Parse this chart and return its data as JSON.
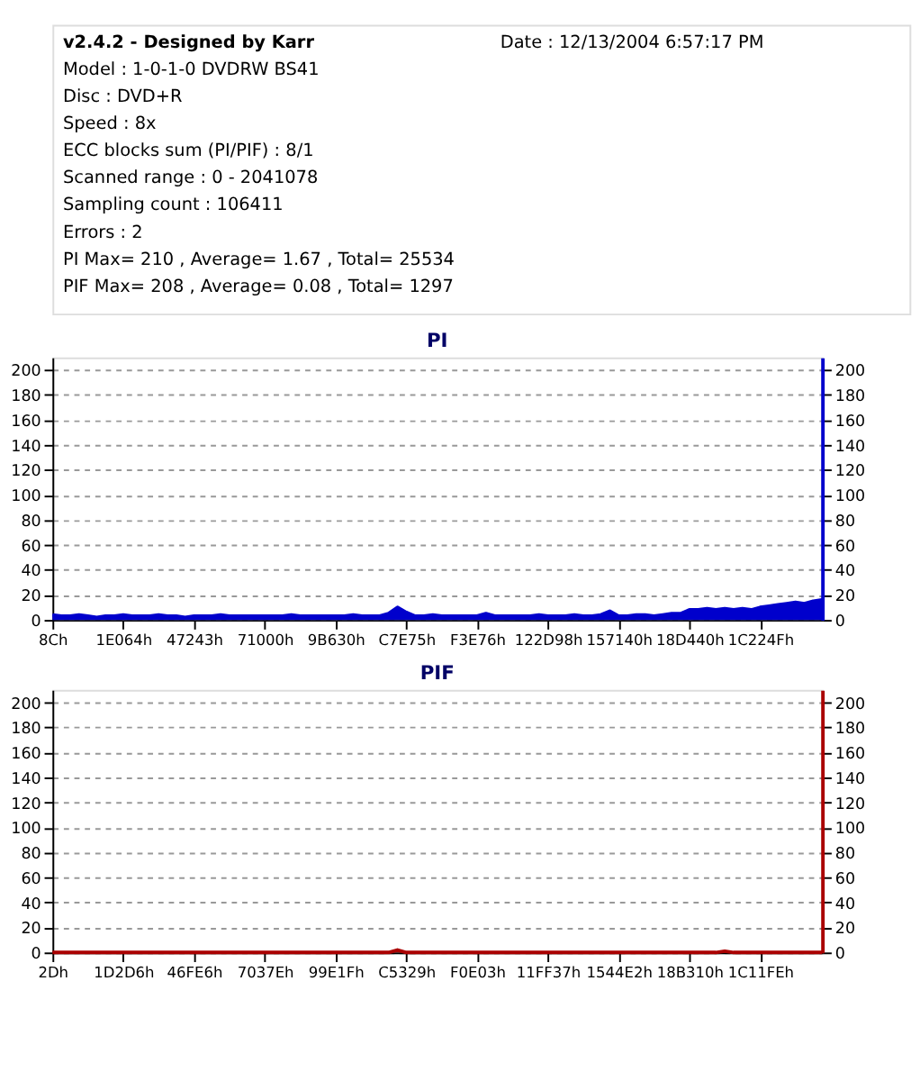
{
  "chart_data": [
    {
      "type": "area",
      "title": "PI",
      "annotations": [
        "v2.4.2 - Designed by Karr",
        "Date : 12/13/2004 6:57:17 PM",
        "Model : 1-0-1-0 DVDRW BS41",
        "Disc : DVD+R",
        "Speed : 8x",
        "ECC blocks sum (PI/PIF) : 8/1",
        "Scanned range : 0 - 2041078",
        "Sampling count : 106411",
        "Errors : 2",
        "PI Max= 210 , Average= 1.67 , Total= 25534",
        "PIF Max= 208 , Average= 0.08 , Total= 1297"
      ],
      "categories": [
        "8Ch",
        null,
        null,
        null,
        null,
        null,
        null,
        null,
        "1E064h",
        null,
        null,
        null,
        null,
        null,
        null,
        null,
        "47243h",
        null,
        null,
        null,
        null,
        null,
        null,
        null,
        "71000h",
        null,
        null,
        null,
        null,
        null,
        null,
        null,
        "9B630h",
        null,
        null,
        null,
        null,
        null,
        null,
        null,
        "C7E75h",
        null,
        null,
        null,
        null,
        null,
        null,
        null,
        "F3E76h",
        null,
        null,
        null,
        null,
        null,
        null,
        null,
        "122D98h",
        null,
        null,
        null,
        null,
        null,
        null,
        null,
        "157140h",
        null,
        null,
        null,
        null,
        null,
        null,
        null,
        "18D440h",
        null,
        null,
        null,
        null,
        null,
        null,
        null,
        "1C224Fh",
        null,
        null,
        null,
        null,
        null,
        null,
        null
      ],
      "series": [
        {
          "color": "#0000cc",
          "values": [
            4,
            3,
            3,
            4,
            3,
            2,
            3,
            3,
            4,
            3,
            3,
            3,
            4,
            3,
            3,
            2,
            3,
            3,
            3,
            4,
            3,
            3,
            3,
            3,
            3,
            3,
            3,
            4,
            3,
            3,
            3,
            3,
            3,
            3,
            4,
            3,
            3,
            3,
            5,
            10,
            6,
            3,
            3,
            4,
            3,
            3,
            3,
            3,
            3,
            5,
            3,
            3,
            3,
            3,
            3,
            4,
            3,
            3,
            3,
            4,
            3,
            3,
            4,
            7,
            3,
            3,
            4,
            4,
            3,
            4,
            5,
            5,
            8,
            8,
            9,
            8,
            9,
            8,
            9,
            8,
            10,
            11,
            12,
            13,
            14,
            13,
            15,
            16
          ]
        }
      ],
      "ylim": [
        0,
        210
      ],
      "yticks": [
        0,
        20,
        40,
        60,
        80,
        100,
        120,
        140,
        160,
        180,
        200
      ],
      "y2lim": [
        0,
        210
      ],
      "y2ticks": [
        0,
        20,
        40,
        60,
        80,
        100,
        120,
        140,
        160,
        180,
        200
      ],
      "grid": "y"
    },
    {
      "type": "area",
      "title": "PIF",
      "categories": [
        "2Dh",
        null,
        null,
        null,
        null,
        null,
        null,
        null,
        "1D2D6h",
        null,
        null,
        null,
        null,
        null,
        null,
        null,
        "46FE6h",
        null,
        null,
        null,
        null,
        null,
        null,
        null,
        "7037Eh",
        null,
        null,
        null,
        null,
        null,
        null,
        null,
        "99E1Fh",
        null,
        null,
        null,
        null,
        null,
        null,
        null,
        "C5329h",
        null,
        null,
        null,
        null,
        null,
        null,
        null,
        "F0E03h",
        null,
        null,
        null,
        null,
        null,
        null,
        null,
        "11FF37h",
        null,
        null,
        null,
        null,
        null,
        null,
        null,
        "1544E2h",
        null,
        null,
        null,
        null,
        null,
        null,
        null,
        "18B310h",
        null,
        null,
        null,
        null,
        null,
        null,
        null,
        "1C11FEh",
        null,
        null,
        null,
        null,
        null,
        null,
        null
      ],
      "series": [
        {
          "color": "#aa0000",
          "values": [
            0,
            0,
            0,
            0,
            0,
            0,
            0,
            0,
            0,
            0,
            0,
            0,
            0,
            0,
            0,
            0,
            0,
            0,
            0,
            0,
            0,
            0,
            0,
            0,
            0,
            0,
            0,
            0,
            0,
            0,
            0,
            0,
            0,
            0,
            0,
            0,
            0,
            0,
            0,
            2,
            0,
            0,
            0,
            0,
            0,
            0,
            0,
            0,
            0,
            0,
            0,
            0,
            0,
            0,
            0,
            0,
            0,
            0,
            0,
            0,
            0,
            0,
            0,
            0,
            0,
            0,
            0,
            0,
            0,
            0,
            0,
            0,
            0,
            0,
            0,
            0,
            1,
            0,
            0,
            0,
            0,
            0,
            0,
            0,
            0,
            0,
            0,
            0
          ]
        }
      ],
      "ylim": [
        0,
        210
      ],
      "yticks": [
        0,
        20,
        40,
        60,
        80,
        100,
        120,
        140,
        160,
        180,
        200
      ],
      "y2lim": [
        0,
        210
      ],
      "y2ticks": [
        0,
        20,
        40,
        60,
        80,
        100,
        120,
        140,
        160,
        180,
        200
      ],
      "grid": "y"
    }
  ]
}
